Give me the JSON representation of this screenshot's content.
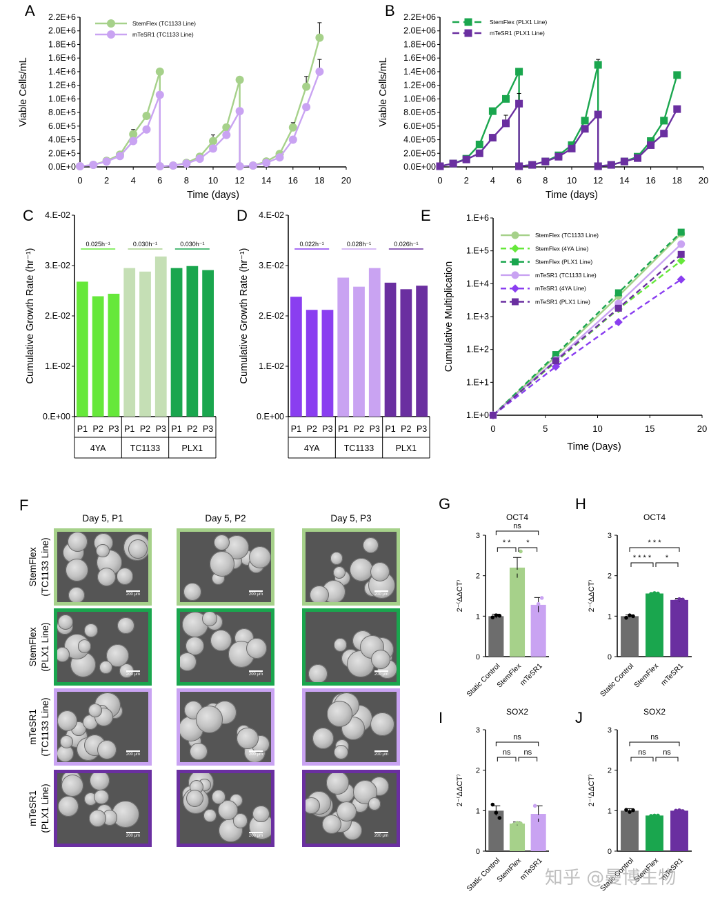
{
  "figure": {
    "colors": {
      "sf_tc": "#a6d18a",
      "sf_4ya": "#66e83a",
      "sf_plx": "#1aa64e",
      "mt_tc": "#c9a3f2",
      "mt_4ya": "#8a3ef0",
      "mt_plx": "#6a2fa0",
      "static": "#6d6d6d"
    },
    "micrographs": {
      "label": "F",
      "col_headers": [
        "Day 5, P1",
        "Day 5, P2",
        "Day 5, P3"
      ],
      "rows": [
        {
          "line1": "StemFlex",
          "line2": "(TC1133 Line)",
          "border": "#a6d18a"
        },
        {
          "line1": "StemFlex",
          "line2": "(PLX1 Line)",
          "border": "#1aa64e"
        },
        {
          "line1": "mTeSR1",
          "line2": "(TC1133 Line)",
          "border": "#c9a3f2"
        },
        {
          "line1": "mTeSR1",
          "line2": "(PLX1 Line)",
          "border": "#6a2fa0"
        }
      ],
      "scale_label": "200 μm"
    },
    "watermark": "知乎 @曼博生物"
  },
  "chart_data": [
    {
      "id": "A",
      "type": "line",
      "title": "",
      "xlabel": "Time (days)",
      "ylabel": "Viable Cells/mL",
      "xlim": [
        0,
        20
      ],
      "xticks": [
        0,
        2,
        4,
        6,
        8,
        10,
        12,
        14,
        16,
        18,
        20
      ],
      "ylim": [
        0,
        2200000
      ],
      "yticks": [
        "0.0E+0",
        "2.0E+5",
        "4.0E+5",
        "6.0E+5",
        "8.0E+5",
        "1.0E+6",
        "1.2E+6",
        "1.4E+6",
        "1.6E+6",
        "1.8E+6",
        "2.0E+6",
        "2.2E+6"
      ],
      "marker": "circle",
      "dashed": false,
      "series": [
        {
          "name": "StemFlex (TC1133 Line)",
          "color": "#a6d18a",
          "x": [
            0,
            1,
            2,
            3,
            4,
            5,
            6,
            6,
            7,
            8,
            9,
            10,
            11,
            12,
            12,
            13,
            14,
            15,
            16,
            17,
            18
          ],
          "y": [
            10000,
            30000,
            90000,
            180000,
            480000,
            750000,
            1400000,
            10000,
            20000,
            60000,
            150000,
            380000,
            580000,
            1280000,
            10000,
            20000,
            80000,
            190000,
            580000,
            1180000,
            1900000
          ],
          "err": [
            0,
            0,
            0,
            0,
            70000,
            0,
            0,
            0,
            0,
            0,
            0,
            90000,
            0,
            0,
            0,
            0,
            0,
            0,
            70000,
            150000,
            220000
          ]
        },
        {
          "name": "mTeSR1 (TC1133 Line)",
          "color": "#c9a3f2",
          "x": [
            0,
            1,
            2,
            3,
            4,
            5,
            6,
            6,
            7,
            8,
            9,
            10,
            11,
            12,
            12,
            13,
            14,
            15,
            16,
            17,
            18
          ],
          "y": [
            10000,
            30000,
            80000,
            160000,
            380000,
            550000,
            1060000,
            10000,
            20000,
            50000,
            120000,
            270000,
            470000,
            820000,
            10000,
            20000,
            60000,
            140000,
            400000,
            880000,
            1400000
          ],
          "err": [
            0,
            0,
            0,
            0,
            0,
            0,
            0,
            0,
            0,
            0,
            0,
            0,
            0,
            0,
            0,
            0,
            0,
            0,
            0,
            0,
            180000
          ]
        }
      ]
    },
    {
      "id": "B",
      "type": "line",
      "title": "",
      "xlabel": "Time (days)",
      "ylabel": "Viable Cells/mL",
      "xlim": [
        0,
        20
      ],
      "xticks": [
        0,
        2,
        4,
        6,
        8,
        10,
        12,
        14,
        16,
        18,
        20
      ],
      "ylim": [
        0,
        2200000
      ],
      "yticks": [
        "0.0E+00",
        "2.0E+05",
        "4.0E+05",
        "6.0E+05",
        "8.0E+05",
        "1.0E+06",
        "1.2E+06",
        "1.4E+06",
        "1.6E+06",
        "1.8E+06",
        "2.0E+06",
        "2.2E+06"
      ],
      "marker": "square",
      "dashed": false,
      "series": [
        {
          "name": "StemFlex (PLX1 Line)",
          "color": "#1aa64e",
          "x": [
            0,
            1,
            2,
            3,
            4,
            5,
            6,
            6,
            7,
            8,
            9,
            10,
            11,
            12,
            12,
            13,
            14,
            15,
            16,
            17,
            18
          ],
          "y": [
            10000,
            50000,
            120000,
            330000,
            820000,
            1000000,
            1400000,
            10000,
            30000,
            80000,
            170000,
            320000,
            680000,
            1500000,
            10000,
            30000,
            80000,
            150000,
            380000,
            680000,
            1350000
          ],
          "err": [
            0,
            0,
            0,
            0,
            0,
            0,
            0,
            0,
            0,
            0,
            0,
            0,
            0,
            80000,
            0,
            0,
            0,
            0,
            0,
            0,
            40000
          ]
        },
        {
          "name": "mTeSR1 (PLX1 Line)",
          "color": "#6a2fa0",
          "x": [
            0,
            1,
            2,
            3,
            4,
            5,
            6,
            6,
            7,
            8,
            9,
            10,
            11,
            12,
            12,
            13,
            14,
            15,
            16,
            17,
            18
          ],
          "y": [
            10000,
            50000,
            110000,
            200000,
            430000,
            640000,
            930000,
            10000,
            30000,
            80000,
            150000,
            270000,
            560000,
            770000,
            10000,
            30000,
            80000,
            130000,
            320000,
            490000,
            850000
          ],
          "err": [
            0,
            0,
            0,
            0,
            0,
            120000,
            150000,
            0,
            0,
            0,
            0,
            0,
            0,
            0,
            0,
            0,
            0,
            0,
            0,
            0,
            0
          ]
        }
      ]
    },
    {
      "id": "C",
      "type": "bar",
      "title": "",
      "ylabel": "Cumulative Growth Rate (hr⁻¹)",
      "ylim": [
        0,
        0.04
      ],
      "yticks": [
        "0.E+00",
        "1.E-02",
        "2.E-02",
        "3.E-02",
        "4.E-02"
      ],
      "categories": [
        "P1",
        "P2",
        "P3",
        "P1",
        "P2",
        "P3",
        "P1",
        "P2",
        "P3"
      ],
      "groups": [
        "4YA",
        "TC1133",
        "PLX1"
      ],
      "values": [
        0.0268,
        0.0239,
        0.0244,
        0.0295,
        0.0288,
        0.0318,
        0.0295,
        0.0299,
        0.0291
      ],
      "colors": [
        "#66e83a",
        "#66e83a",
        "#66e83a",
        "#c5dfb5",
        "#c5dfb5",
        "#c5dfb5",
        "#1aa64e",
        "#1aa64e",
        "#1aa64e"
      ],
      "annotations": [
        {
          "text": "0.025h⁻¹",
          "group": 0,
          "color": "#66e83a"
        },
        {
          "text": "0.030h⁻¹",
          "group": 1,
          "color": "#a6d18a"
        },
        {
          "text": "0.030h⁻¹",
          "group": 2,
          "color": "#1aa64e"
        }
      ]
    },
    {
      "id": "D",
      "type": "bar",
      "title": "",
      "ylabel": "Cumulative Growth Rate (hr⁻¹)",
      "ylim": [
        0,
        0.04
      ],
      "yticks": [
        "0.E+00",
        "1.E-02",
        "2.E-02",
        "3.E-02",
        "4.E-02"
      ],
      "categories": [
        "P1",
        "P2",
        "P3",
        "P1",
        "P2",
        "P3",
        "P1",
        "P2",
        "P3"
      ],
      "groups": [
        "4YA",
        "TC1133",
        "PLX1"
      ],
      "values": [
        0.0238,
        0.0212,
        0.0212,
        0.0276,
        0.0258,
        0.0295,
        0.0266,
        0.0253,
        0.026
      ],
      "colors": [
        "#8a3ef0",
        "#8a3ef0",
        "#8a3ef0",
        "#c9a3f2",
        "#c9a3f2",
        "#c9a3f2",
        "#6a2fa0",
        "#6a2fa0",
        "#6a2fa0"
      ],
      "annotations": [
        {
          "text": "0.022h⁻¹",
          "group": 0,
          "color": "#8a3ef0"
        },
        {
          "text": "0.028h⁻¹",
          "group": 1,
          "color": "#c9a3f2"
        },
        {
          "text": "0.026h⁻¹",
          "group": 2,
          "color": "#6a2fa0"
        }
      ]
    },
    {
      "id": "E",
      "type": "line",
      "title": "",
      "xlabel": "Time (Days)",
      "ylabel": "Cumulative Multiplication",
      "xlim": [
        0,
        20
      ],
      "xticks": [
        0,
        5,
        10,
        15,
        20
      ],
      "yscale": "log",
      "ylim": [
        1,
        1000000
      ],
      "yticks": [
        "1.E+0",
        "1.E+1",
        "1.E+2",
        "1.E+3",
        "1.E+4",
        "1.E+5",
        "1.E+6"
      ],
      "series": [
        {
          "name": "StemFlex (TC1133 Line)",
          "color": "#a6d18a",
          "marker": "circle",
          "dashed": false,
          "x": [
            0,
            6,
            12,
            18
          ],
          "y": [
            1,
            62,
            4200,
            330000
          ]
        },
        {
          "name": "StemFlex (4YA Line)",
          "color": "#66e83a",
          "marker": "diamond",
          "dashed": true,
          "x": [
            0,
            6,
            12,
            18
          ],
          "y": [
            1,
            42,
            1700,
            50000
          ]
        },
        {
          "name": "StemFlex (PLX1 Line)",
          "color": "#1aa64e",
          "marker": "square",
          "dashed": true,
          "x": [
            0,
            6,
            12,
            18
          ],
          "y": [
            1,
            70,
            5300,
            370000
          ]
        },
        {
          "name": "mTeSR1 (TC1133 Line)",
          "color": "#c9a3f2",
          "marker": "circle",
          "dashed": false,
          "x": [
            0,
            6,
            12,
            18
          ],
          "y": [
            1,
            48,
            2500,
            160000
          ]
        },
        {
          "name": "mTeSR1 (4YA Line)",
          "color": "#8a3ef0",
          "marker": "diamond",
          "dashed": true,
          "x": [
            0,
            6,
            12,
            18
          ],
          "y": [
            1,
            30,
            680,
            13500
          ]
        },
        {
          "name": "mTeSR1 (PLX1 Line)",
          "color": "#6a2fa0",
          "marker": "square",
          "dashed": true,
          "x": [
            0,
            6,
            12,
            18
          ],
          "y": [
            1,
            45,
            1800,
            78000
          ]
        }
      ]
    },
    {
      "id": "G",
      "type": "bar",
      "title": "OCT4",
      "ylabel": "2⁻⁽ΔΔCT⁾",
      "ylim": [
        0,
        3
      ],
      "yticks": [
        "0",
        "1",
        "2",
        "3"
      ],
      "categories": [
        "Static Control",
        "StemFlex",
        "mTeSR1"
      ],
      "values": [
        1.0,
        2.2,
        1.28
      ],
      "err": [
        0.05,
        0.25,
        0.18
      ],
      "points": [
        [
          0.97,
          1.02,
          1.01
        ],
        [
          1.9,
          2.1,
          2.6
        ],
        [
          1.1,
          1.3,
          1.45
        ]
      ],
      "colors": [
        "#6d6d6d",
        "#a6d18a",
        "#c9a3f2"
      ],
      "brackets": [
        {
          "from": 0,
          "to": 2,
          "level": 3,
          "text": "ns"
        },
        {
          "from": 0,
          "to": 1,
          "level": 2,
          "text": "* *"
        },
        {
          "from": 1,
          "to": 2,
          "level": 2,
          "text": "*"
        }
      ]
    },
    {
      "id": "H",
      "type": "bar",
      "title": "OCT4",
      "ylabel": "2⁻⁽ΔΔCT⁾",
      "ylim": [
        0,
        3
      ],
      "yticks": [
        "0",
        "1",
        "2",
        "3"
      ],
      "categories": [
        "Static Control",
        "StemFlex",
        "mTeSR1"
      ],
      "values": [
        1.0,
        1.56,
        1.4
      ],
      "err": [
        0.03,
        0.02,
        0.04
      ],
      "points": [
        [
          0.96,
          1.02,
          1.0
        ],
        [
          1.55,
          1.57,
          1.56
        ],
        [
          1.37,
          1.42,
          1.41
        ]
      ],
      "colors": [
        "#6d6d6d",
        "#1aa64e",
        "#6a2fa0"
      ],
      "brackets": [
        {
          "from": 0,
          "to": 2,
          "level": 2,
          "text": "* * *"
        },
        {
          "from": 0,
          "to": 1,
          "level": 1,
          "text": "* * * *"
        },
        {
          "from": 1,
          "to": 2,
          "level": 1,
          "text": "*"
        }
      ]
    },
    {
      "id": "I",
      "type": "bar",
      "title": "SOX2",
      "ylabel": "2⁻⁽ΔΔCT⁾",
      "ylim": [
        0,
        3
      ],
      "yticks": [
        "0",
        "1",
        "2",
        "3"
      ],
      "categories": [
        "Static Control",
        "StemFlex",
        "mTeSR1"
      ],
      "values": [
        1.0,
        0.68,
        0.92
      ],
      "err": [
        0.12,
        0.04,
        0.2
      ],
      "points": [
        [
          1.15,
          0.95,
          0.82
        ],
        [
          0.66,
          0.7,
          0.68
        ],
        [
          1.12,
          0.85,
          0.78
        ]
      ],
      "colors": [
        "#6d6d6d",
        "#a6d18a",
        "#c9a3f2"
      ],
      "brackets": [
        {
          "from": 0,
          "to": 2,
          "level": 2,
          "text": "ns"
        },
        {
          "from": 0,
          "to": 1,
          "level": 1,
          "text": "ns"
        },
        {
          "from": 1,
          "to": 2,
          "level": 1,
          "text": "ns"
        }
      ]
    },
    {
      "id": "J",
      "type": "bar",
      "title": "SOX2",
      "ylabel": "2⁻⁽ΔΔCT⁾",
      "ylim": [
        0,
        3
      ],
      "yticks": [
        "0",
        "1",
        "2",
        "3"
      ],
      "categories": [
        "Static Control",
        "StemFlex",
        "mTeSR1"
      ],
      "values": [
        1.0,
        0.88,
        1.0
      ],
      "err": [
        0.05,
        0.01,
        0.02
      ],
      "points": [
        [
          1.02,
          0.97,
          1.01
        ],
        [
          0.87,
          0.88,
          0.88
        ],
        [
          1.0,
          1.01,
          0.99
        ]
      ],
      "colors": [
        "#6d6d6d",
        "#1aa64e",
        "#6a2fa0"
      ],
      "brackets": [
        {
          "from": 0,
          "to": 2,
          "level": 2,
          "text": "ns"
        },
        {
          "from": 0,
          "to": 1,
          "level": 1,
          "text": "ns"
        },
        {
          "from": 1,
          "to": 2,
          "level": 1,
          "text": "ns"
        }
      ]
    }
  ]
}
